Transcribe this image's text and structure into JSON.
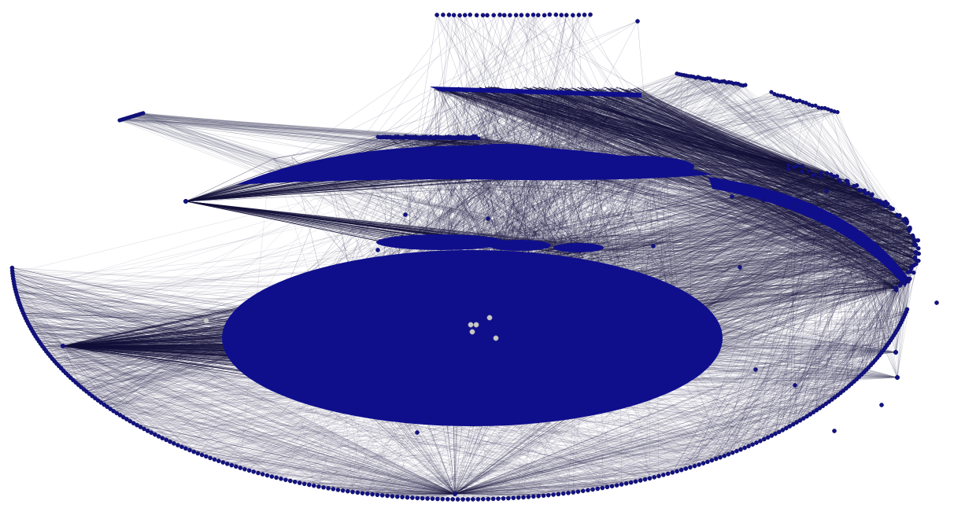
{
  "figure": {
    "type": "network-graph",
    "caption": "",
    "labels_printed": false
  },
  "colors": {
    "background": "#ffffff",
    "node": "#12127f",
    "node_outline": "#0a0a60",
    "cluster_fill": "#0f0f8c",
    "edge_dark": "#15123a",
    "edge_light": "#5a5878",
    "highlight_node": "#c8c8c8"
  },
  "clusters": [
    {
      "name": "central-core-cluster",
      "description_level": "dense"
    },
    {
      "name": "bottom-outer-arc",
      "description_level": "ring"
    },
    {
      "name": "upper-stacked-layers",
      "description_level": "dense"
    },
    {
      "name": "top-node-row",
      "description_level": "sparse"
    },
    {
      "name": "upper-left-strip",
      "description_level": "sparse"
    },
    {
      "name": "right-side-arc",
      "description_level": "ring"
    }
  ]
}
